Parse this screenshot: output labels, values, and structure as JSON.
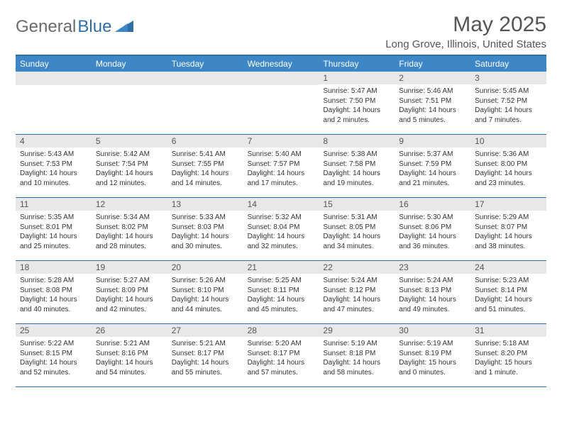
{
  "logo": {
    "part1": "General",
    "part2": "Blue"
  },
  "title": "May 2025",
  "location": "Long Grove, Illinois, United States",
  "weekdays": [
    "Sunday",
    "Monday",
    "Tuesday",
    "Wednesday",
    "Thursday",
    "Friday",
    "Saturday"
  ],
  "colors": {
    "header_bg": "#3d87c7",
    "border": "#2f6fa8",
    "daynum_bg": "#e8e8e8",
    "text": "#333333",
    "title_text": "#555555"
  },
  "weeks": [
    [
      {
        "n": "",
        "sr": "",
        "ss": "",
        "dl": ""
      },
      {
        "n": "",
        "sr": "",
        "ss": "",
        "dl": ""
      },
      {
        "n": "",
        "sr": "",
        "ss": "",
        "dl": ""
      },
      {
        "n": "",
        "sr": "",
        "ss": "",
        "dl": ""
      },
      {
        "n": "1",
        "sr": "Sunrise: 5:47 AM",
        "ss": "Sunset: 7:50 PM",
        "dl": "Daylight: 14 hours and 2 minutes."
      },
      {
        "n": "2",
        "sr": "Sunrise: 5:46 AM",
        "ss": "Sunset: 7:51 PM",
        "dl": "Daylight: 14 hours and 5 minutes."
      },
      {
        "n": "3",
        "sr": "Sunrise: 5:45 AM",
        "ss": "Sunset: 7:52 PM",
        "dl": "Daylight: 14 hours and 7 minutes."
      }
    ],
    [
      {
        "n": "4",
        "sr": "Sunrise: 5:43 AM",
        "ss": "Sunset: 7:53 PM",
        "dl": "Daylight: 14 hours and 10 minutes."
      },
      {
        "n": "5",
        "sr": "Sunrise: 5:42 AM",
        "ss": "Sunset: 7:54 PM",
        "dl": "Daylight: 14 hours and 12 minutes."
      },
      {
        "n": "6",
        "sr": "Sunrise: 5:41 AM",
        "ss": "Sunset: 7:55 PM",
        "dl": "Daylight: 14 hours and 14 minutes."
      },
      {
        "n": "7",
        "sr": "Sunrise: 5:40 AM",
        "ss": "Sunset: 7:57 PM",
        "dl": "Daylight: 14 hours and 17 minutes."
      },
      {
        "n": "8",
        "sr": "Sunrise: 5:38 AM",
        "ss": "Sunset: 7:58 PM",
        "dl": "Daylight: 14 hours and 19 minutes."
      },
      {
        "n": "9",
        "sr": "Sunrise: 5:37 AM",
        "ss": "Sunset: 7:59 PM",
        "dl": "Daylight: 14 hours and 21 minutes."
      },
      {
        "n": "10",
        "sr": "Sunrise: 5:36 AM",
        "ss": "Sunset: 8:00 PM",
        "dl": "Daylight: 14 hours and 23 minutes."
      }
    ],
    [
      {
        "n": "11",
        "sr": "Sunrise: 5:35 AM",
        "ss": "Sunset: 8:01 PM",
        "dl": "Daylight: 14 hours and 25 minutes."
      },
      {
        "n": "12",
        "sr": "Sunrise: 5:34 AM",
        "ss": "Sunset: 8:02 PM",
        "dl": "Daylight: 14 hours and 28 minutes."
      },
      {
        "n": "13",
        "sr": "Sunrise: 5:33 AM",
        "ss": "Sunset: 8:03 PM",
        "dl": "Daylight: 14 hours and 30 minutes."
      },
      {
        "n": "14",
        "sr": "Sunrise: 5:32 AM",
        "ss": "Sunset: 8:04 PM",
        "dl": "Daylight: 14 hours and 32 minutes."
      },
      {
        "n": "15",
        "sr": "Sunrise: 5:31 AM",
        "ss": "Sunset: 8:05 PM",
        "dl": "Daylight: 14 hours and 34 minutes."
      },
      {
        "n": "16",
        "sr": "Sunrise: 5:30 AM",
        "ss": "Sunset: 8:06 PM",
        "dl": "Daylight: 14 hours and 36 minutes."
      },
      {
        "n": "17",
        "sr": "Sunrise: 5:29 AM",
        "ss": "Sunset: 8:07 PM",
        "dl": "Daylight: 14 hours and 38 minutes."
      }
    ],
    [
      {
        "n": "18",
        "sr": "Sunrise: 5:28 AM",
        "ss": "Sunset: 8:08 PM",
        "dl": "Daylight: 14 hours and 40 minutes."
      },
      {
        "n": "19",
        "sr": "Sunrise: 5:27 AM",
        "ss": "Sunset: 8:09 PM",
        "dl": "Daylight: 14 hours and 42 minutes."
      },
      {
        "n": "20",
        "sr": "Sunrise: 5:26 AM",
        "ss": "Sunset: 8:10 PM",
        "dl": "Daylight: 14 hours and 44 minutes."
      },
      {
        "n": "21",
        "sr": "Sunrise: 5:25 AM",
        "ss": "Sunset: 8:11 PM",
        "dl": "Daylight: 14 hours and 45 minutes."
      },
      {
        "n": "22",
        "sr": "Sunrise: 5:24 AM",
        "ss": "Sunset: 8:12 PM",
        "dl": "Daylight: 14 hours and 47 minutes."
      },
      {
        "n": "23",
        "sr": "Sunrise: 5:24 AM",
        "ss": "Sunset: 8:13 PM",
        "dl": "Daylight: 14 hours and 49 minutes."
      },
      {
        "n": "24",
        "sr": "Sunrise: 5:23 AM",
        "ss": "Sunset: 8:14 PM",
        "dl": "Daylight: 14 hours and 51 minutes."
      }
    ],
    [
      {
        "n": "25",
        "sr": "Sunrise: 5:22 AM",
        "ss": "Sunset: 8:15 PM",
        "dl": "Daylight: 14 hours and 52 minutes."
      },
      {
        "n": "26",
        "sr": "Sunrise: 5:21 AM",
        "ss": "Sunset: 8:16 PM",
        "dl": "Daylight: 14 hours and 54 minutes."
      },
      {
        "n": "27",
        "sr": "Sunrise: 5:21 AM",
        "ss": "Sunset: 8:17 PM",
        "dl": "Daylight: 14 hours and 55 minutes."
      },
      {
        "n": "28",
        "sr": "Sunrise: 5:20 AM",
        "ss": "Sunset: 8:17 PM",
        "dl": "Daylight: 14 hours and 57 minutes."
      },
      {
        "n": "29",
        "sr": "Sunrise: 5:19 AM",
        "ss": "Sunset: 8:18 PM",
        "dl": "Daylight: 14 hours and 58 minutes."
      },
      {
        "n": "30",
        "sr": "Sunrise: 5:19 AM",
        "ss": "Sunset: 8:19 PM",
        "dl": "Daylight: 15 hours and 0 minutes."
      },
      {
        "n": "31",
        "sr": "Sunrise: 5:18 AM",
        "ss": "Sunset: 8:20 PM",
        "dl": "Daylight: 15 hours and 1 minute."
      }
    ]
  ]
}
